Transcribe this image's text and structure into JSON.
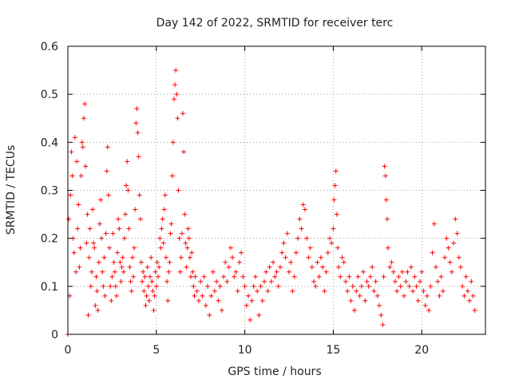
{
  "chart_data": {
    "type": "scatter",
    "title": "Day 142 of 2022, SRMTID for receiver terc",
    "xlabel": "GPS time / hours",
    "ylabel": "SRMTID / TECUs",
    "xlim": [
      0,
      23.6
    ],
    "ylim": [
      0,
      0.6
    ],
    "xticks": [
      0,
      5,
      10,
      15,
      20
    ],
    "yticks": [
      0,
      0.1,
      0.2,
      0.3,
      0.4,
      0.5,
      0.6
    ],
    "xtick_labels": [
      "0",
      "5",
      "10",
      "15",
      "20"
    ],
    "ytick_labels": [
      "0",
      "0.1",
      "0.2",
      "0.3",
      "0.4",
      "0.5",
      "0.6"
    ],
    "grid": true,
    "marker": "+",
    "series": [
      {
        "name": "SRMTID",
        "color": "#ff0000",
        "points": [
          [
            0.0,
            0.0
          ],
          [
            0.05,
            0.24
          ],
          [
            0.1,
            0.08
          ],
          [
            0.15,
            0.29
          ],
          [
            0.2,
            0.38
          ],
          [
            0.25,
            0.33
          ],
          [
            0.3,
            0.2
          ],
          [
            0.35,
            0.17
          ],
          [
            0.4,
            0.41
          ],
          [
            0.45,
            0.13
          ],
          [
            0.5,
            0.36
          ],
          [
            0.55,
            0.22
          ],
          [
            0.6,
            0.27
          ],
          [
            0.65,
            0.14
          ],
          [
            0.7,
            0.18
          ],
          [
            0.75,
            0.33
          ],
          [
            0.8,
            0.4
          ],
          [
            0.85,
            0.39
          ],
          [
            0.9,
            0.45
          ],
          [
            0.95,
            0.48
          ],
          [
            1.0,
            0.35
          ],
          [
            1.05,
            0.19
          ],
          [
            1.1,
            0.25
          ],
          [
            1.15,
            0.04
          ],
          [
            1.2,
            0.16
          ],
          [
            1.25,
            0.22
          ],
          [
            1.3,
            0.1
          ],
          [
            1.35,
            0.13
          ],
          [
            1.4,
            0.26
          ],
          [
            1.45,
            0.19
          ],
          [
            1.5,
            0.18
          ],
          [
            1.55,
            0.06
          ],
          [
            1.6,
            0.12
          ],
          [
            1.65,
            0.09
          ],
          [
            1.7,
            0.05
          ],
          [
            1.75,
            0.15
          ],
          [
            1.8,
            0.23
          ],
          [
            1.85,
            0.28
          ],
          [
            1.9,
            0.2
          ],
          [
            1.95,
            0.13
          ],
          [
            2.0,
            0.1
          ],
          [
            2.05,
            0.16
          ],
          [
            2.1,
            0.08
          ],
          [
            2.15,
            0.21
          ],
          [
            2.2,
            0.34
          ],
          [
            2.25,
            0.39
          ],
          [
            2.3,
            0.29
          ],
          [
            2.35,
            0.18
          ],
          [
            2.4,
            0.1
          ],
          [
            2.45,
            0.07
          ],
          [
            2.5,
            0.12
          ],
          [
            2.55,
            0.21
          ],
          [
            2.6,
            0.15
          ],
          [
            2.65,
            0.13
          ],
          [
            2.7,
            0.1
          ],
          [
            2.75,
            0.08
          ],
          [
            2.8,
            0.17
          ],
          [
            2.85,
            0.24
          ],
          [
            2.9,
            0.22
          ],
          [
            2.95,
            0.15
          ],
          [
            3.0,
            0.11
          ],
          [
            3.05,
            0.14
          ],
          [
            3.1,
            0.16
          ],
          [
            3.15,
            0.13
          ],
          [
            3.2,
            0.2
          ],
          [
            3.25,
            0.25
          ],
          [
            3.3,
            0.31
          ],
          [
            3.35,
            0.36
          ],
          [
            3.4,
            0.3
          ],
          [
            3.45,
            0.22
          ],
          [
            3.5,
            0.14
          ],
          [
            3.55,
            0.11
          ],
          [
            3.6,
            0.09
          ],
          [
            3.65,
            0.16
          ],
          [
            3.7,
            0.12
          ],
          [
            3.75,
            0.18
          ],
          [
            3.8,
            0.26
          ],
          [
            3.85,
            0.44
          ],
          [
            3.9,
            0.47
          ],
          [
            3.95,
            0.42
          ],
          [
            4.0,
            0.37
          ],
          [
            4.05,
            0.29
          ],
          [
            4.1,
            0.24
          ],
          [
            4.15,
            0.15
          ],
          [
            4.2,
            0.11
          ],
          [
            4.25,
            0.13
          ],
          [
            4.3,
            0.09
          ],
          [
            4.35,
            0.12
          ],
          [
            4.4,
            0.06
          ],
          [
            4.45,
            0.08
          ],
          [
            4.5,
            0.14
          ],
          [
            4.55,
            0.1
          ],
          [
            4.6,
            0.07
          ],
          [
            4.65,
            0.12
          ],
          [
            4.7,
            0.16
          ],
          [
            4.75,
            0.11
          ],
          [
            4.8,
            0.09
          ],
          [
            4.85,
            0.05
          ],
          [
            4.9,
            0.08
          ],
          [
            4.95,
            0.13
          ],
          [
            5.0,
            0.1
          ],
          [
            5.05,
            0.15
          ],
          [
            5.1,
            0.12
          ],
          [
            5.15,
            0.14
          ],
          [
            5.2,
            0.2
          ],
          [
            5.25,
            0.18
          ],
          [
            5.3,
            0.22
          ],
          [
            5.35,
            0.24
          ],
          [
            5.4,
            0.19
          ],
          [
            5.45,
            0.26
          ],
          [
            5.5,
            0.29
          ],
          [
            5.55,
            0.16
          ],
          [
            5.6,
            0.11
          ],
          [
            5.65,
            0.07
          ],
          [
            5.7,
            0.13
          ],
          [
            5.75,
            0.15
          ],
          [
            5.8,
            0.21
          ],
          [
            5.85,
            0.23
          ],
          [
            5.9,
            0.33
          ],
          [
            5.95,
            0.4
          ],
          [
            6.0,
            0.49
          ],
          [
            6.05,
            0.52
          ],
          [
            6.1,
            0.55
          ],
          [
            6.15,
            0.5
          ],
          [
            6.2,
            0.45
          ],
          [
            6.25,
            0.3
          ],
          [
            6.3,
            0.2
          ],
          [
            6.35,
            0.13
          ],
          [
            6.4,
            0.16
          ],
          [
            6.45,
            0.21
          ],
          [
            6.5,
            0.46
          ],
          [
            6.55,
            0.38
          ],
          [
            6.6,
            0.25
          ],
          [
            6.65,
            0.19
          ],
          [
            6.7,
            0.14
          ],
          [
            6.75,
            0.18
          ],
          [
            6.8,
            0.22
          ],
          [
            6.85,
            0.2
          ],
          [
            6.9,
            0.16
          ],
          [
            6.95,
            0.12
          ],
          [
            7.0,
            0.17
          ],
          [
            7.05,
            0.13
          ],
          [
            7.1,
            0.1
          ],
          [
            7.15,
            0.08
          ],
          [
            7.2,
            0.12
          ],
          [
            7.3,
            0.09
          ],
          [
            7.4,
            0.07
          ],
          [
            7.5,
            0.11
          ],
          [
            7.6,
            0.08
          ],
          [
            7.7,
            0.12
          ],
          [
            7.8,
            0.06
          ],
          [
            7.9,
            0.1
          ],
          [
            8.0,
            0.04
          ],
          [
            8.1,
            0.08
          ],
          [
            8.2,
            0.13
          ],
          [
            8.3,
            0.09
          ],
          [
            8.4,
            0.11
          ],
          [
            8.5,
            0.07
          ],
          [
            8.6,
            0.1
          ],
          [
            8.7,
            0.05
          ],
          [
            8.8,
            0.12
          ],
          [
            8.9,
            0.15
          ],
          [
            9.0,
            0.11
          ],
          [
            9.1,
            0.14
          ],
          [
            9.2,
            0.18
          ],
          [
            9.3,
            0.16
          ],
          [
            9.4,
            0.12
          ],
          [
            9.5,
            0.13
          ],
          [
            9.6,
            0.09
          ],
          [
            9.7,
            0.15
          ],
          [
            9.8,
            0.17
          ],
          [
            9.9,
            0.12
          ],
          [
            10.0,
            0.1
          ],
          [
            10.1,
            0.06
          ],
          [
            10.2,
            0.08
          ],
          [
            10.3,
            0.03
          ],
          [
            10.4,
            0.07
          ],
          [
            10.5,
            0.1
          ],
          [
            10.6,
            0.12
          ],
          [
            10.7,
            0.09
          ],
          [
            10.8,
            0.04
          ],
          [
            10.9,
            0.1
          ],
          [
            11.0,
            0.07
          ],
          [
            11.1,
            0.11
          ],
          [
            11.2,
            0.13
          ],
          [
            11.3,
            0.09
          ],
          [
            11.4,
            0.14
          ],
          [
            11.5,
            0.11
          ],
          [
            11.6,
            0.15
          ],
          [
            11.7,
            0.12
          ],
          [
            11.8,
            0.13
          ],
          [
            11.9,
            0.1
          ],
          [
            12.0,
            0.14
          ],
          [
            12.1,
            0.17
          ],
          [
            12.2,
            0.19
          ],
          [
            12.3,
            0.16
          ],
          [
            12.4,
            0.21
          ],
          [
            12.5,
            0.13
          ],
          [
            12.6,
            0.15
          ],
          [
            12.7,
            0.09
          ],
          [
            12.8,
            0.12
          ],
          [
            12.9,
            0.17
          ],
          [
            13.0,
            0.2
          ],
          [
            13.1,
            0.24
          ],
          [
            13.2,
            0.22
          ],
          [
            13.3,
            0.27
          ],
          [
            13.4,
            0.26
          ],
          [
            13.5,
            0.2
          ],
          [
            13.6,
            0.16
          ],
          [
            13.7,
            0.18
          ],
          [
            13.8,
            0.14
          ],
          [
            13.9,
            0.11
          ],
          [
            14.0,
            0.1
          ],
          [
            14.1,
            0.15
          ],
          [
            14.2,
            0.12
          ],
          [
            14.3,
            0.16
          ],
          [
            14.4,
            0.14
          ],
          [
            14.5,
            0.09
          ],
          [
            14.6,
            0.13
          ],
          [
            14.7,
            0.17
          ],
          [
            14.8,
            0.2
          ],
          [
            14.9,
            0.19
          ],
          [
            15.0,
            0.22
          ],
          [
            15.05,
            0.28
          ],
          [
            15.1,
            0.31
          ],
          [
            15.15,
            0.34
          ],
          [
            15.2,
            0.25
          ],
          [
            15.25,
            0.18
          ],
          [
            15.3,
            0.14
          ],
          [
            15.4,
            0.12
          ],
          [
            15.5,
            0.16
          ],
          [
            15.6,
            0.15
          ],
          [
            15.7,
            0.11
          ],
          [
            15.8,
            0.09
          ],
          [
            15.9,
            0.12
          ],
          [
            16.0,
            0.07
          ],
          [
            16.1,
            0.1
          ],
          [
            16.2,
            0.05
          ],
          [
            16.3,
            0.09
          ],
          [
            16.4,
            0.12
          ],
          [
            16.5,
            0.08
          ],
          [
            16.6,
            0.1
          ],
          [
            16.7,
            0.13
          ],
          [
            16.8,
            0.07
          ],
          [
            16.9,
            0.11
          ],
          [
            17.0,
            0.1
          ],
          [
            17.1,
            0.12
          ],
          [
            17.2,
            0.14
          ],
          [
            17.3,
            0.09
          ],
          [
            17.4,
            0.11
          ],
          [
            17.5,
            0.08
          ],
          [
            17.6,
            0.06
          ],
          [
            17.7,
            0.04
          ],
          [
            17.8,
            0.02
          ],
          [
            17.85,
            0.12
          ],
          [
            17.9,
            0.35
          ],
          [
            17.95,
            0.33
          ],
          [
            18.0,
            0.28
          ],
          [
            18.05,
            0.24
          ],
          [
            18.1,
            0.18
          ],
          [
            18.2,
            0.14
          ],
          [
            18.3,
            0.15
          ],
          [
            18.4,
            0.13
          ],
          [
            18.5,
            0.11
          ],
          [
            18.6,
            0.09
          ],
          [
            18.7,
            0.12
          ],
          [
            18.8,
            0.1
          ],
          [
            18.9,
            0.13
          ],
          [
            19.0,
            0.08
          ],
          [
            19.1,
            0.11
          ],
          [
            19.2,
            0.13
          ],
          [
            19.3,
            0.1
          ],
          [
            19.4,
            0.14
          ],
          [
            19.5,
            0.09
          ],
          [
            19.6,
            0.12
          ],
          [
            19.7,
            0.1
          ],
          [
            19.8,
            0.07
          ],
          [
            19.9,
            0.11
          ],
          [
            20.0,
            0.13
          ],
          [
            20.1,
            0.09
          ],
          [
            20.2,
            0.06
          ],
          [
            20.3,
            0.08
          ],
          [
            20.4,
            0.05
          ],
          [
            20.5,
            0.1
          ],
          [
            20.6,
            0.17
          ],
          [
            20.7,
            0.23
          ],
          [
            20.8,
            0.14
          ],
          [
            20.9,
            0.11
          ],
          [
            21.0,
            0.08
          ],
          [
            21.1,
            0.12
          ],
          [
            21.2,
            0.09
          ],
          [
            21.3,
            0.16
          ],
          [
            21.4,
            0.2
          ],
          [
            21.5,
            0.18
          ],
          [
            21.6,
            0.15
          ],
          [
            21.7,
            0.13
          ],
          [
            21.8,
            0.19
          ],
          [
            21.9,
            0.24
          ],
          [
            22.0,
            0.21
          ],
          [
            22.1,
            0.16
          ],
          [
            22.2,
            0.14
          ],
          [
            22.3,
            0.1
          ],
          [
            22.4,
            0.08
          ],
          [
            22.5,
            0.12
          ],
          [
            22.6,
            0.09
          ],
          [
            22.7,
            0.07
          ],
          [
            22.8,
            0.11
          ],
          [
            22.9,
            0.08
          ],
          [
            23.0,
            0.05
          ]
        ]
      }
    ]
  }
}
